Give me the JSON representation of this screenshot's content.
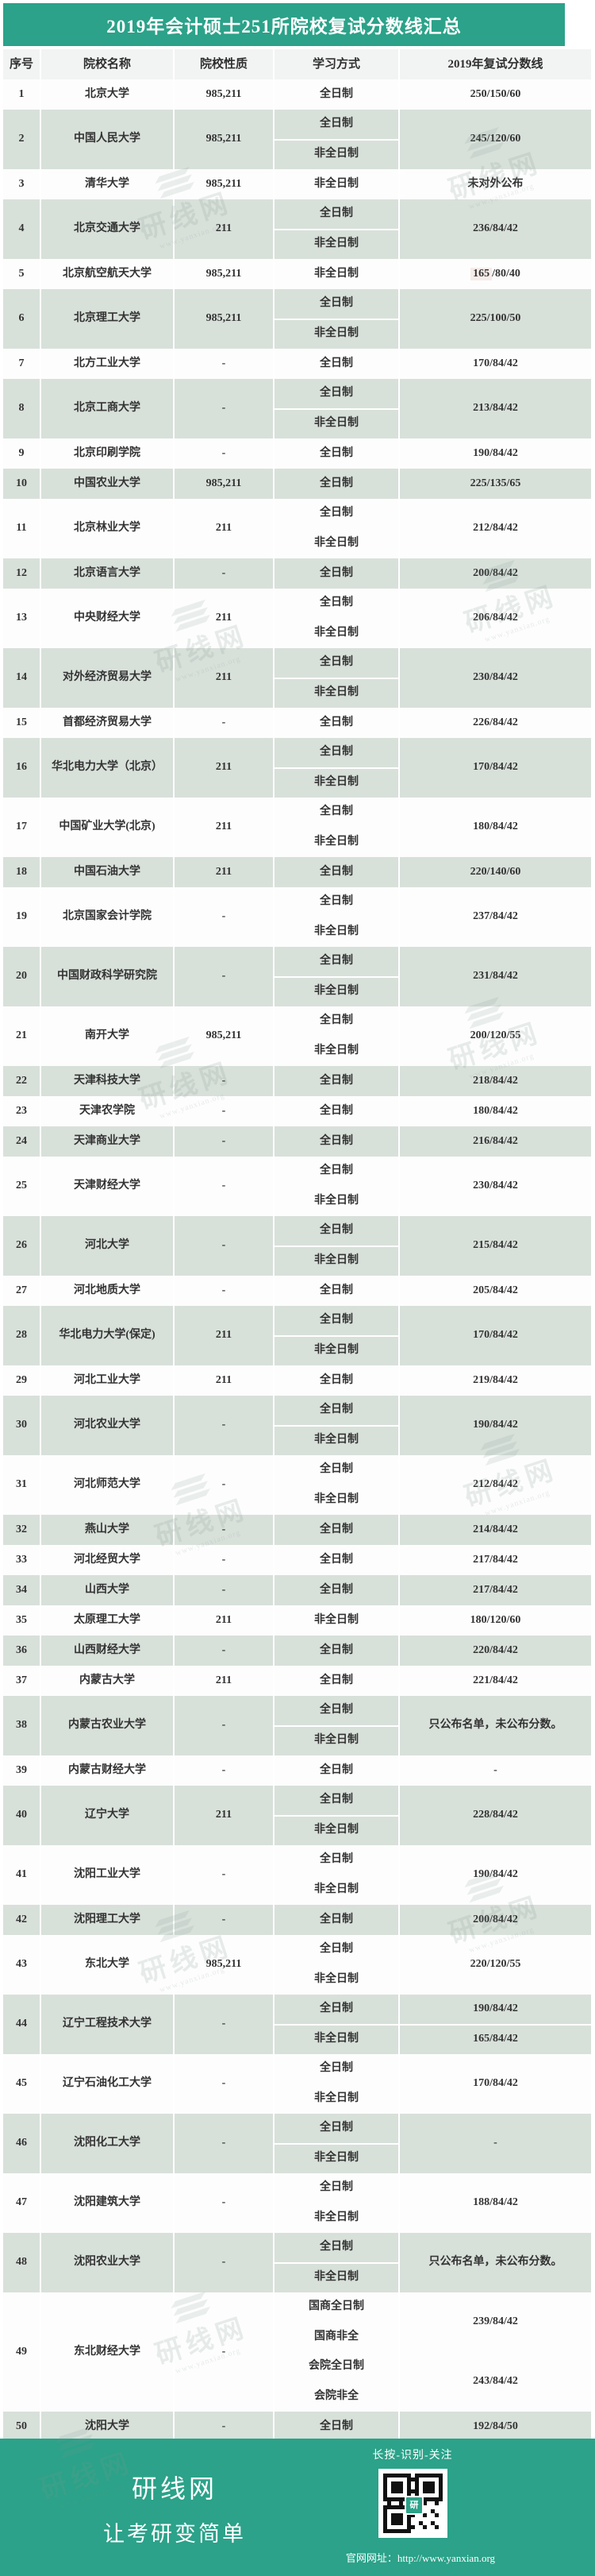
{
  "title": "2019年会计硕士251所院校复试分数线汇总",
  "table": {
    "columns": [
      "序号",
      "院校名称",
      "院校性质",
      "学习方式",
      "2019年复试分数线"
    ],
    "rows": [
      {
        "no": "1",
        "name": "北京大学",
        "type": "985,211",
        "modes": [
          "全日制"
        ],
        "score": "250/150/60"
      },
      {
        "no": "2",
        "name": "中国人民大学",
        "type": "985,211",
        "modes": [
          "全日制",
          "非全日制"
        ],
        "score": "245/120/60"
      },
      {
        "no": "3",
        "name": "清华大学",
        "type": "985,211",
        "modes": [
          "非全日制"
        ],
        "score": "未对外公布"
      },
      {
        "no": "4",
        "name": "北京交通大学",
        "type": "211",
        "modes": [
          "全日制",
          "非全日制"
        ],
        "score": "236/84/42"
      },
      {
        "no": "5",
        "name": "北京航空航天大学",
        "type": "985,211",
        "modes": [
          "非全日制"
        ],
        "score": "165/80/40",
        "hl": "165"
      },
      {
        "no": "6",
        "name": "北京理工大学",
        "type": "985,211",
        "modes": [
          "全日制",
          "非全日制"
        ],
        "score": "225/100/50"
      },
      {
        "no": "7",
        "name": "北方工业大学",
        "type": "-",
        "modes": [
          "全日制"
        ],
        "score": "170/84/42"
      },
      {
        "no": "8",
        "name": "北京工商大学",
        "type": "-",
        "modes": [
          "全日制",
          "非全日制"
        ],
        "score": "213/84/42"
      },
      {
        "no": "9",
        "name": "北京印刷学院",
        "type": "-",
        "modes": [
          "全日制"
        ],
        "score": "190/84/42"
      },
      {
        "no": "10",
        "name": "中国农业大学",
        "type": "985,211",
        "modes": [
          "全日制"
        ],
        "score": "225/135/65"
      },
      {
        "no": "11",
        "name": "北京林业大学",
        "type": "211",
        "modes": [
          "全日制",
          "非全日制"
        ],
        "score": "212/84/42"
      },
      {
        "no": "12",
        "name": "北京语言大学",
        "type": "-",
        "modes": [
          "全日制"
        ],
        "score": "200/84/42"
      },
      {
        "no": "13",
        "name": "中央财经大学",
        "type": "211",
        "modes": [
          "全日制",
          "非全日制"
        ],
        "score": "206/84/42"
      },
      {
        "no": "14",
        "name": "对外经济贸易大学",
        "type": "211",
        "modes": [
          "全日制",
          "非全日制"
        ],
        "score": "230/84/42"
      },
      {
        "no": "15",
        "name": "首都经济贸易大学",
        "type": "-",
        "modes": [
          "全日制"
        ],
        "score": "226/84/42"
      },
      {
        "no": "16",
        "name": "华北电力大学（北京）",
        "type": "211",
        "modes": [
          "全日制",
          "非全日制"
        ],
        "score": "170/84/42"
      },
      {
        "no": "17",
        "name": "中国矿业大学(北京)",
        "type": "211",
        "modes": [
          "全日制",
          "非全日制"
        ],
        "score": "180/84/42"
      },
      {
        "no": "18",
        "name": "中国石油大学",
        "type": "211",
        "modes": [
          "全日制"
        ],
        "score": "220/140/60"
      },
      {
        "no": "19",
        "name": "北京国家会计学院",
        "type": "-",
        "modes": [
          "全日制",
          "非全日制"
        ],
        "score": "237/84/42"
      },
      {
        "no": "20",
        "name": "中国财政科学研究院",
        "type": "-",
        "modes": [
          "全日制",
          "非全日制"
        ],
        "score": "231/84/42"
      },
      {
        "no": "21",
        "name": "南开大学",
        "type": "985,211",
        "modes": [
          "全日制",
          "非全日制"
        ],
        "score": "200/120/55"
      },
      {
        "no": "22",
        "name": "天津科技大学",
        "type": "-",
        "modes": [
          "全日制"
        ],
        "score": "218/84/42"
      },
      {
        "no": "23",
        "name": "天津农学院",
        "type": "-",
        "modes": [
          "全日制"
        ],
        "score": "180/84/42"
      },
      {
        "no": "24",
        "name": "天津商业大学",
        "type": "-",
        "modes": [
          "全日制"
        ],
        "score": "216/84/42"
      },
      {
        "no": "25",
        "name": "天津财经大学",
        "type": "-",
        "modes": [
          "全日制",
          "非全日制"
        ],
        "score": "230/84/42"
      },
      {
        "no": "26",
        "name": "河北大学",
        "type": "-",
        "modes": [
          "全日制",
          "非全日制"
        ],
        "score": "215/84/42"
      },
      {
        "no": "27",
        "name": "河北地质大学",
        "type": "-",
        "modes": [
          "全日制"
        ],
        "score": "205/84/42"
      },
      {
        "no": "28",
        "name": "华北电力大学(保定)",
        "type": "211",
        "modes": [
          "全日制",
          "非全日制"
        ],
        "score": "170/84/42"
      },
      {
        "no": "29",
        "name": "河北工业大学",
        "type": "211",
        "modes": [
          "全日制"
        ],
        "score": "219/84/42"
      },
      {
        "no": "30",
        "name": "河北农业大学",
        "type": "-",
        "modes": [
          "全日制",
          "非全日制"
        ],
        "score": "190/84/42"
      },
      {
        "no": "31",
        "name": "河北师范大学",
        "type": "-",
        "modes": [
          "全日制",
          "非全日制"
        ],
        "score": "212/84/42"
      },
      {
        "no": "32",
        "name": "燕山大学",
        "type": "-",
        "modes": [
          "全日制"
        ],
        "score": "214/84/42"
      },
      {
        "no": "33",
        "name": "河北经贸大学",
        "type": "-",
        "modes": [
          "全日制"
        ],
        "score": "217/84/42"
      },
      {
        "no": "34",
        "name": "山西大学",
        "type": "-",
        "modes": [
          "全日制"
        ],
        "score": "217/84/42"
      },
      {
        "no": "35",
        "name": "太原理工大学",
        "type": "211",
        "modes": [
          "非全日制"
        ],
        "score": "180/120/60"
      },
      {
        "no": "36",
        "name": "山西财经大学",
        "type": "-",
        "modes": [
          "全日制"
        ],
        "score": "220/84/42"
      },
      {
        "no": "37",
        "name": "内蒙古大学",
        "type": "211",
        "modes": [
          "全日制"
        ],
        "score": "221/84/42"
      },
      {
        "no": "38",
        "name": "内蒙古农业大学",
        "type": "-",
        "modes": [
          "全日制",
          "非全日制"
        ],
        "score": "只公布名单，未公布分数。"
      },
      {
        "no": "39",
        "name": "内蒙古财经大学",
        "type": "-",
        "modes": [
          "全日制"
        ],
        "score": "-"
      },
      {
        "no": "40",
        "name": "辽宁大学",
        "type": "211",
        "modes": [
          "全日制",
          "非全日制"
        ],
        "score": "228/84/42"
      },
      {
        "no": "41",
        "name": "沈阳工业大学",
        "type": "-",
        "modes": [
          "全日制",
          "非全日制"
        ],
        "score": "190/84/42"
      },
      {
        "no": "42",
        "name": "沈阳理工大学",
        "type": "-",
        "modes": [
          "全日制"
        ],
        "score": "200/84/42"
      },
      {
        "no": "43",
        "name": "东北大学",
        "type": "985,211",
        "modes": [
          "全日制",
          "非全日制"
        ],
        "score": "220/120/55"
      },
      {
        "no": "44",
        "name": "辽宁工程技术大学",
        "type": "-",
        "modes": [
          "全日制",
          "非全日制"
        ],
        "scores": [
          "190/84/42",
          "165/84/42"
        ]
      },
      {
        "no": "45",
        "name": "辽宁石油化工大学",
        "type": "-",
        "modes": [
          "全日制",
          "非全日制"
        ],
        "score": "170/84/42"
      },
      {
        "no": "46",
        "name": "沈阳化工大学",
        "type": "-",
        "modes": [
          "全日制",
          "非全日制"
        ],
        "score": "-"
      },
      {
        "no": "47",
        "name": "沈阳建筑大学",
        "type": "-",
        "modes": [
          "全日制",
          "非全日制"
        ],
        "score": "188/84/42"
      },
      {
        "no": "48",
        "name": "沈阳农业大学",
        "type": "-",
        "modes": [
          "全日制",
          "非全日制"
        ],
        "score": "只公布名单，未公布分数。"
      },
      {
        "no": "49",
        "name": "东北财经大学",
        "type": "-",
        "modes": [
          "国商全日制",
          "国商非全",
          "会院全日制",
          "会院非全"
        ],
        "scores": [
          "239/84/42",
          "243/84/42"
        ]
      },
      {
        "no": "50",
        "name": "沈阳大学",
        "type": "-",
        "modes": [
          "全日制"
        ],
        "score": "192/84/50"
      }
    ]
  },
  "footer": {
    "brand": "研线网",
    "slogan": "让考研变简单",
    "qr_caption": "长按-识别-关注",
    "qr_logo": "研",
    "site": "官网网址：http://www.yanxian.org"
  },
  "watermark": {
    "text": "研线网",
    "sub": "www.yanxian.org"
  },
  "colors": {
    "accent": "#2ba289",
    "row_shade": "#d8e0da",
    "header_bg": "#f2f4f3"
  }
}
